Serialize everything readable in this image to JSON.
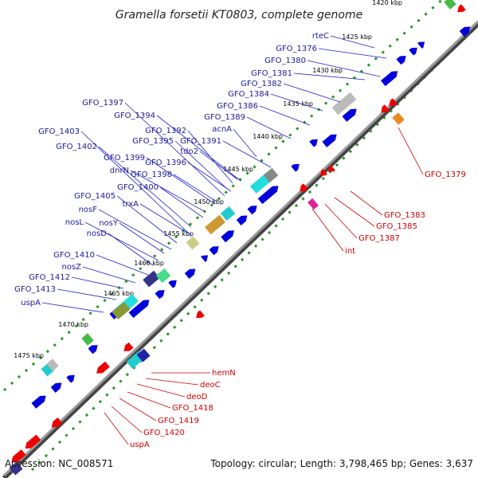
{
  "title": "Gramella forsetii KT0803, complete genome",
  "footer": {
    "accession": "Accession: NC_008571",
    "topology": "Topology: circular; Length: 3,798,465 bp; Genes: 3,637"
  },
  "ticks": [
    "1420 kbp",
    "1425 kbp",
    "1430 kbp",
    "1435 kbp",
    "1440 kbp",
    "1445 kbp",
    "1450 kbp",
    "1455 kbp",
    "1460 kbp",
    "1465 kbp",
    "1470 kbp",
    "1475 kbp"
  ],
  "forward_labels": [
    "rteC",
    "GFO_1376",
    "GFO_1380",
    "GFO_1381",
    "GFO_1382",
    "GFO_1384",
    "GFO_1386",
    "GFO_1389",
    "acnA",
    "GFO_1391",
    "tdo2",
    "GFO_1392",
    "GFO_1395",
    "GFO_1394",
    "GFO_1396",
    "GFO_1397",
    "GFO_1398",
    "GFO_1399",
    "dnrN",
    "GFO_1400",
    "GFO_1402",
    "GFO_1403",
    "trxA",
    "GFO_1405",
    "nosF",
    "nosY",
    "nosL",
    "nosD",
    "GFO_1410",
    "nosZ",
    "GFO_1412",
    "GFO_1413",
    "uspA"
  ],
  "reverse_labels": [
    "GFO_1379",
    "GFO_1383",
    "GFO_1385",
    "GFO_1387",
    "int",
    "hemN",
    "deoC",
    "deoD",
    "GFO_1418",
    "GFO_1419",
    "GFO_1420",
    "uspA"
  ],
  "colors": {
    "forward_gene": "#0000dd",
    "reverse_gene": "#ee0000",
    "forward_label": "#1a1a99",
    "reverse_label": "#cc0000",
    "backbone": "#999999",
    "dotted_ring": "#229922"
  }
}
